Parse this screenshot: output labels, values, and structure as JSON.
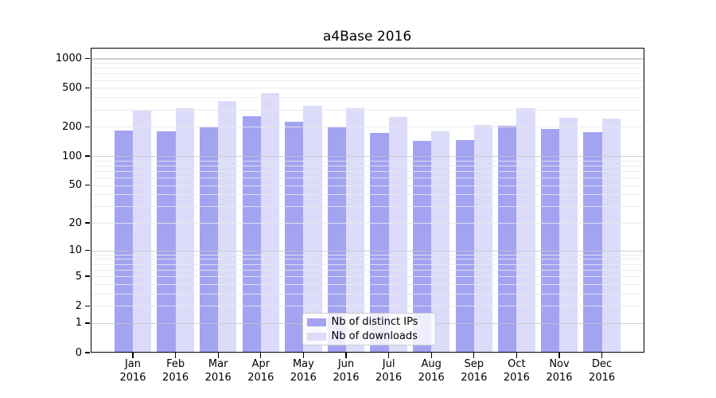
{
  "title": "a4Base 2016",
  "chart_data": {
    "type": "bar",
    "title": "a4Base 2016",
    "categories": [
      "Jan",
      "Feb",
      "Mar",
      "Apr",
      "May",
      "Jun",
      "Jul",
      "Aug",
      "Sep",
      "Oct",
      "Nov",
      "Dec"
    ],
    "x_tick_line2": "2016",
    "series": [
      {
        "name": "Nb of distinct IPs",
        "color": "#a3a3f1",
        "values": [
          184,
          180,
          199,
          258,
          225,
          196,
          173,
          143,
          145,
          206,
          191,
          177
        ]
      },
      {
        "name": "Nb of downloads",
        "color": "#dcdcfa",
        "values": [
          292,
          310,
          367,
          439,
          330,
          312,
          251,
          181,
          210,
          312,
          247,
          242
        ]
      }
    ],
    "yscale": "log1p",
    "ylim": [
      0,
      1283
    ],
    "yticks": [
      1000,
      500,
      200,
      100,
      50,
      20,
      10,
      5,
      2,
      1,
      0
    ],
    "grid": "on",
    "legend_position": "lower center inside"
  },
  "colors": {
    "background": "#ffffff",
    "spine": "#000000",
    "text": "#000000",
    "major_grid": "#c5c5c5",
    "minor_grid": "#e9e9e9"
  }
}
